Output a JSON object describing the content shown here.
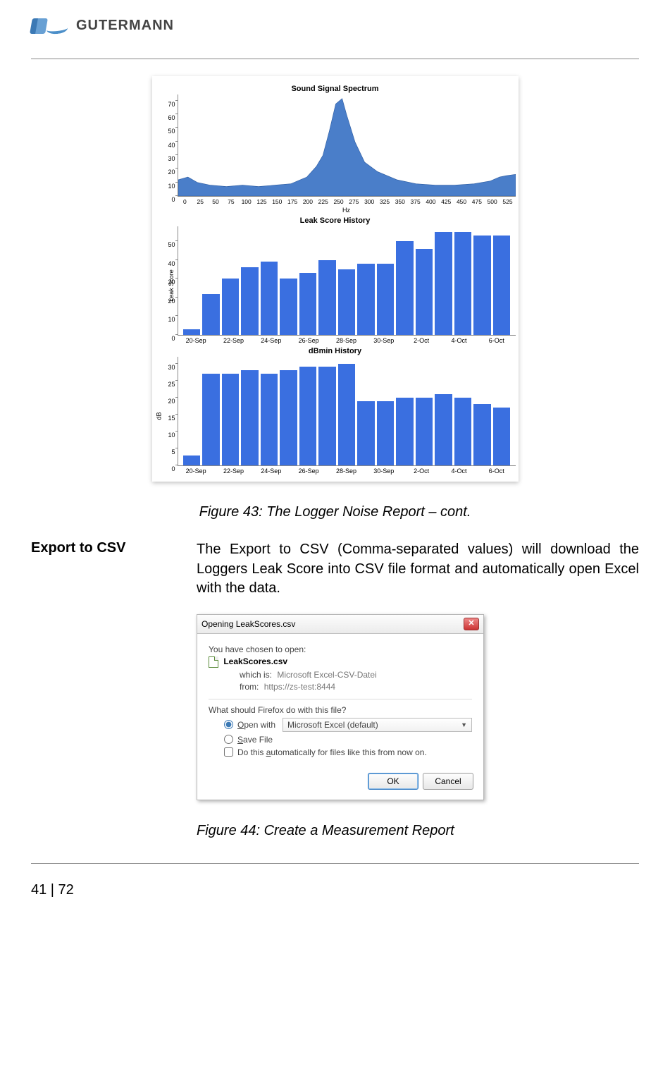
{
  "logo_text": "GUTERMANN",
  "chart1": {
    "title": "Sound Signal Spectrum",
    "xlabel": "Hz",
    "yticks": [
      0,
      10,
      20,
      30,
      40,
      50,
      60,
      70
    ],
    "ymax": 75,
    "xticks": [
      0,
      25,
      50,
      75,
      100,
      125,
      150,
      175,
      200,
      225,
      250,
      275,
      300,
      325,
      350,
      375,
      400,
      425,
      450,
      475,
      500,
      525
    ],
    "xmax": 525,
    "fill": "#4a7ec9",
    "points": [
      [
        0,
        12
      ],
      [
        15,
        14
      ],
      [
        30,
        10
      ],
      [
        50,
        8
      ],
      [
        75,
        7
      ],
      [
        100,
        8
      ],
      [
        125,
        7
      ],
      [
        150,
        8
      ],
      [
        175,
        9
      ],
      [
        200,
        14
      ],
      [
        215,
        22
      ],
      [
        225,
        30
      ],
      [
        235,
        48
      ],
      [
        245,
        68
      ],
      [
        255,
        72
      ],
      [
        262,
        60
      ],
      [
        275,
        40
      ],
      [
        290,
        25
      ],
      [
        310,
        18
      ],
      [
        340,
        12
      ],
      [
        370,
        9
      ],
      [
        400,
        8
      ],
      [
        430,
        8
      ],
      [
        460,
        9
      ],
      [
        485,
        11
      ],
      [
        500,
        14
      ],
      [
        510,
        15
      ],
      [
        525,
        16
      ]
    ]
  },
  "chart2": {
    "title": "Leak Score History",
    "ylabel": "Leak Score",
    "yticks": [
      0,
      10,
      20,
      30,
      40,
      50
    ],
    "ymax": 58,
    "categories": [
      "20-Sep",
      "22-Sep",
      "24-Sep",
      "26-Sep",
      "28-Sep",
      "30-Sep",
      "2-Oct",
      "4-Oct",
      "6-Oct"
    ],
    "values": [
      3,
      22,
      30,
      36,
      39,
      30,
      33,
      40,
      35,
      38,
      38,
      50,
      46,
      55,
      55,
      53,
      53
    ],
    "bar_color": "#3a6fe0"
  },
  "chart3": {
    "title": "dBmin History",
    "ylabel": "dB",
    "yticks": [
      0,
      5,
      10,
      15,
      20,
      25,
      30
    ],
    "ymax": 32,
    "categories": [
      "20-Sep",
      "22-Sep",
      "24-Sep",
      "26-Sep",
      "28-Sep",
      "30-Sep",
      "2-Oct",
      "4-Oct",
      "6-Oct"
    ],
    "values": [
      3,
      27,
      27,
      28,
      27,
      28,
      29,
      29,
      30,
      19,
      19,
      20,
      20,
      21,
      20,
      18,
      17
    ],
    "bar_color": "#3a6fe0"
  },
  "caption1": "Figure 43: The Logger Noise Report – cont.",
  "section_heading": "Export to CSV",
  "body_text": "The Export to CSV (Comma-separated values) will download the Loggers Leak Score into CSV file format and automatically open Excel with the data.",
  "dialog": {
    "title": "Opening LeakScores.csv",
    "intro": "You have chosen to open:",
    "filename": "LeakScores.csv",
    "which_is_label": "which is:",
    "which_is_value": "Microsoft Excel-CSV-Datei",
    "from_label": "from:",
    "from_value": "https://zs-test:8444",
    "question": "What should Firefox do with this file?",
    "open_with": "Open with",
    "open_with_value": "Microsoft Excel (default)",
    "save_file": "Save File",
    "automatic": "Do this automatically for files like this from now on.",
    "ok": "OK",
    "cancel": "Cancel"
  },
  "caption2": "Figure 44: Create a Measurement Report",
  "page_number": "41 | 72"
}
